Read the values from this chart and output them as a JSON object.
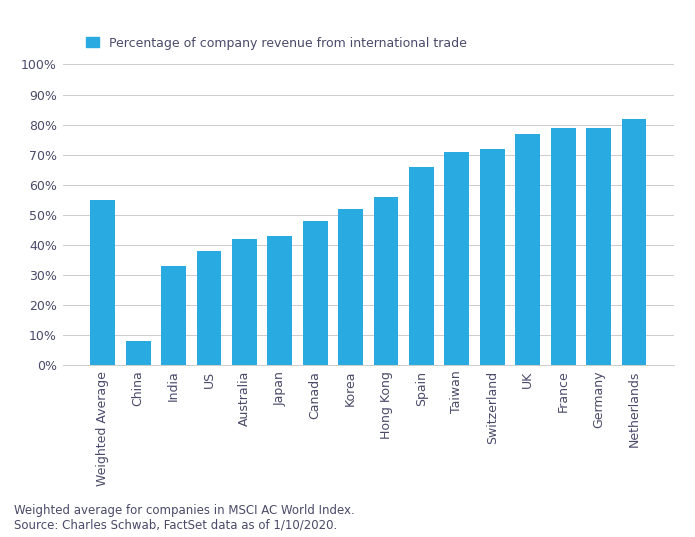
{
  "categories": [
    "Weighted Average",
    "China",
    "India",
    "US",
    "Australia",
    "Japan",
    "Canada",
    "Korea",
    "Hong Kong",
    "Spain",
    "Taiwan",
    "Switzerland",
    "UK",
    "France",
    "Germany",
    "Netherlands"
  ],
  "values": [
    0.55,
    0.08,
    0.33,
    0.38,
    0.42,
    0.43,
    0.48,
    0.52,
    0.56,
    0.66,
    0.71,
    0.72,
    0.77,
    0.79,
    0.79,
    0.82
  ],
  "bar_color": "#29ABE2",
  "legend_label": "Percentage of company revenue from international trade",
  "legend_color": "#29ABE2",
  "yticks": [
    0.0,
    0.1,
    0.2,
    0.3,
    0.4,
    0.5,
    0.6,
    0.7,
    0.8,
    0.9,
    1.0
  ],
  "ytick_labels": [
    "0%",
    "10%",
    "20%",
    "30%",
    "40%",
    "50%",
    "60%",
    "70%",
    "80%",
    "90%",
    "100%"
  ],
  "ylim": [
    0,
    1.0
  ],
  "footnote_line1": "Weighted average for companies in MSCI AC World Index.",
  "footnote_line2": "Source: Charles Schwab, FactSet data as of 1/10/2020.",
  "background_color": "#FFFFFF",
  "grid_color": "#CCCCCC",
  "tick_label_fontsize": 9,
  "legend_fontsize": 9,
  "footnote_fontsize": 8.5,
  "text_color": "#4a4a6a"
}
